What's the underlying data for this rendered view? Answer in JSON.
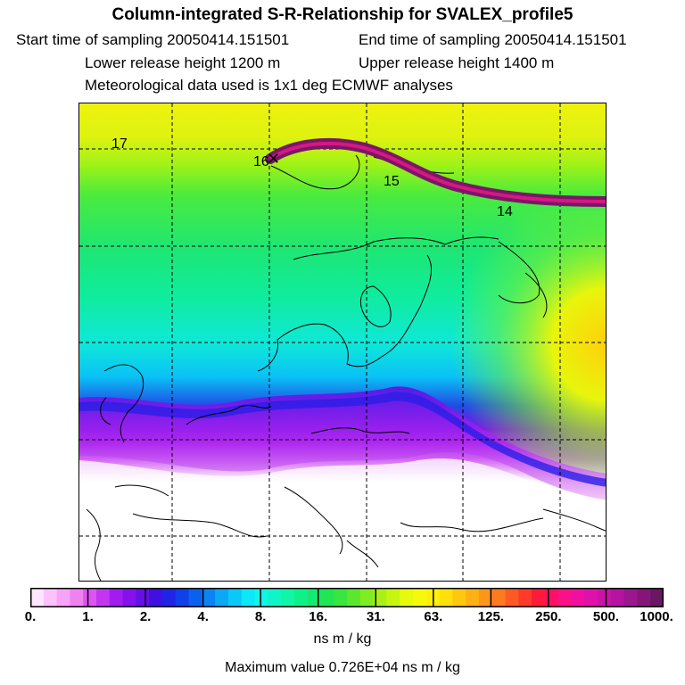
{
  "header": {
    "title": "Column-integrated S-R-Relationship for SVALEX_profile5",
    "start_time": "Start time of sampling 20050414.151501",
    "end_time": "End time of sampling 20050414.151501",
    "lower_release": "Lower release height 1200 m",
    "upper_release": "Upper release height 1400 m",
    "met_data": "Meteorological data used is 1x1 deg ECMWF analyses"
  },
  "map": {
    "track_labels": [
      "17",
      "16",
      "15",
      "14"
    ]
  },
  "colorbar": {
    "labels": [
      "0.",
      "1.",
      "2.",
      "4.",
      "8.",
      "16.",
      "31.",
      "63.",
      "125.",
      "250.",
      "500.",
      "1000."
    ],
    "colors": [
      "#ffe6ff",
      "#fcc2fc",
      "#f7a3f7",
      "#ee82ee",
      "#dd55f0",
      "#c236f0",
      "#a31cef",
      "#8412ea",
      "#6410e6",
      "#3f10e0",
      "#1f25e6",
      "#1040ea",
      "#0a60ef",
      "#0a84f2",
      "#0aa8f5",
      "#0bc8f7",
      "#0ce8f7",
      "#0ff5e6",
      "#10f5c5",
      "#10f5a8",
      "#10f08a",
      "#14ea70",
      "#20e655",
      "#38e63f",
      "#5ce62e",
      "#80ec22",
      "#a8f018",
      "#c8f510",
      "#e6fa0c",
      "#f5fa0a",
      "#fff00a",
      "#ffe00a",
      "#ffc80f",
      "#ffb014",
      "#ff9619",
      "#ff7a1e",
      "#ff5a23",
      "#ff3a28",
      "#ff1a3c",
      "#ff1066",
      "#fa1088",
      "#f010a0",
      "#e011a8",
      "#cc12a8",
      "#b414a0",
      "#9c168e",
      "#84167a",
      "#6a1664"
    ],
    "units": "ns m / kg",
    "max_value": "Maximum value  0.726E+04 ns m / kg"
  }
}
